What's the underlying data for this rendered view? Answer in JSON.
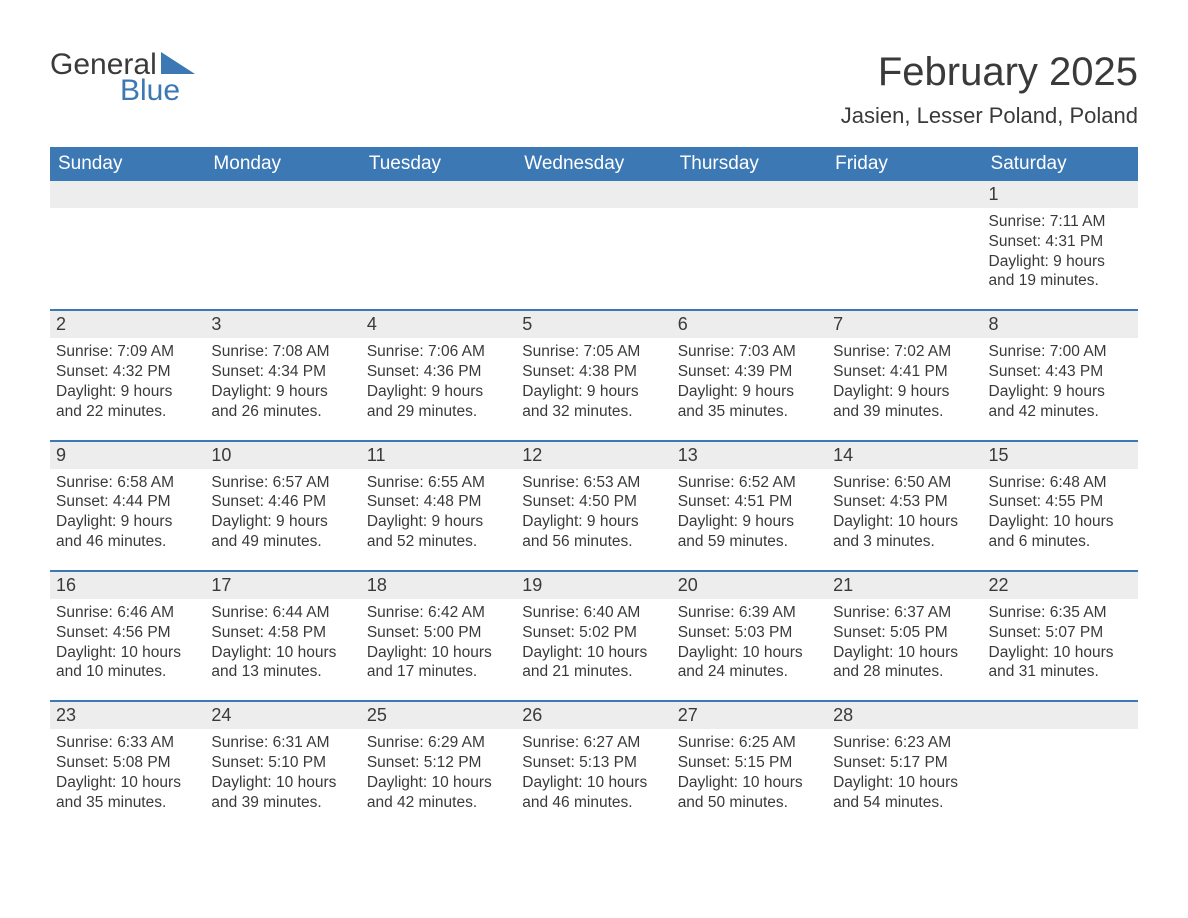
{
  "brand": {
    "word1": "General",
    "word2": "Blue"
  },
  "title": "February 2025",
  "subtitle": "Jasien, Lesser Poland, Poland",
  "theme": {
    "header_bg": "#3c78b4",
    "header_text": "#ffffff",
    "daynum_bg": "#ededed",
    "rule_color": "#3c78b4",
    "body_text": "#3a3a3a",
    "page_bg": "#ffffff",
    "title_fontsize": 40,
    "subtitle_fontsize": 22,
    "dayheader_fontsize": 19,
    "body_fontsize": 15.5
  },
  "day_headers": [
    "Sunday",
    "Monday",
    "Tuesday",
    "Wednesday",
    "Thursday",
    "Friday",
    "Saturday"
  ],
  "labels": {
    "sunrise": "Sunrise:",
    "sunset": "Sunset:",
    "daylight": "Daylight:"
  },
  "weeks": [
    [
      null,
      null,
      null,
      null,
      null,
      null,
      {
        "n": "1",
        "sr": "7:11 AM",
        "ss": "4:31 PM",
        "dl": "9 hours and 19 minutes."
      }
    ],
    [
      {
        "n": "2",
        "sr": "7:09 AM",
        "ss": "4:32 PM",
        "dl": "9 hours and 22 minutes."
      },
      {
        "n": "3",
        "sr": "7:08 AM",
        "ss": "4:34 PM",
        "dl": "9 hours and 26 minutes."
      },
      {
        "n": "4",
        "sr": "7:06 AM",
        "ss": "4:36 PM",
        "dl": "9 hours and 29 minutes."
      },
      {
        "n": "5",
        "sr": "7:05 AM",
        "ss": "4:38 PM",
        "dl": "9 hours and 32 minutes."
      },
      {
        "n": "6",
        "sr": "7:03 AM",
        "ss": "4:39 PM",
        "dl": "9 hours and 35 minutes."
      },
      {
        "n": "7",
        "sr": "7:02 AM",
        "ss": "4:41 PM",
        "dl": "9 hours and 39 minutes."
      },
      {
        "n": "8",
        "sr": "7:00 AM",
        "ss": "4:43 PM",
        "dl": "9 hours and 42 minutes."
      }
    ],
    [
      {
        "n": "9",
        "sr": "6:58 AM",
        "ss": "4:44 PM",
        "dl": "9 hours and 46 minutes."
      },
      {
        "n": "10",
        "sr": "6:57 AM",
        "ss": "4:46 PM",
        "dl": "9 hours and 49 minutes."
      },
      {
        "n": "11",
        "sr": "6:55 AM",
        "ss": "4:48 PM",
        "dl": "9 hours and 52 minutes."
      },
      {
        "n": "12",
        "sr": "6:53 AM",
        "ss": "4:50 PM",
        "dl": "9 hours and 56 minutes."
      },
      {
        "n": "13",
        "sr": "6:52 AM",
        "ss": "4:51 PM",
        "dl": "9 hours and 59 minutes."
      },
      {
        "n": "14",
        "sr": "6:50 AM",
        "ss": "4:53 PM",
        "dl": "10 hours and 3 minutes."
      },
      {
        "n": "15",
        "sr": "6:48 AM",
        "ss": "4:55 PM",
        "dl": "10 hours and 6 minutes."
      }
    ],
    [
      {
        "n": "16",
        "sr": "6:46 AM",
        "ss": "4:56 PM",
        "dl": "10 hours and 10 minutes."
      },
      {
        "n": "17",
        "sr": "6:44 AM",
        "ss": "4:58 PM",
        "dl": "10 hours and 13 minutes."
      },
      {
        "n": "18",
        "sr": "6:42 AM",
        "ss": "5:00 PM",
        "dl": "10 hours and 17 minutes."
      },
      {
        "n": "19",
        "sr": "6:40 AM",
        "ss": "5:02 PM",
        "dl": "10 hours and 21 minutes."
      },
      {
        "n": "20",
        "sr": "6:39 AM",
        "ss": "5:03 PM",
        "dl": "10 hours and 24 minutes."
      },
      {
        "n": "21",
        "sr": "6:37 AM",
        "ss": "5:05 PM",
        "dl": "10 hours and 28 minutes."
      },
      {
        "n": "22",
        "sr": "6:35 AM",
        "ss": "5:07 PM",
        "dl": "10 hours and 31 minutes."
      }
    ],
    [
      {
        "n": "23",
        "sr": "6:33 AM",
        "ss": "5:08 PM",
        "dl": "10 hours and 35 minutes."
      },
      {
        "n": "24",
        "sr": "6:31 AM",
        "ss": "5:10 PM",
        "dl": "10 hours and 39 minutes."
      },
      {
        "n": "25",
        "sr": "6:29 AM",
        "ss": "5:12 PM",
        "dl": "10 hours and 42 minutes."
      },
      {
        "n": "26",
        "sr": "6:27 AM",
        "ss": "5:13 PM",
        "dl": "10 hours and 46 minutes."
      },
      {
        "n": "27",
        "sr": "6:25 AM",
        "ss": "5:15 PM",
        "dl": "10 hours and 50 minutes."
      },
      {
        "n": "28",
        "sr": "6:23 AM",
        "ss": "5:17 PM",
        "dl": "10 hours and 54 minutes."
      },
      null
    ]
  ]
}
